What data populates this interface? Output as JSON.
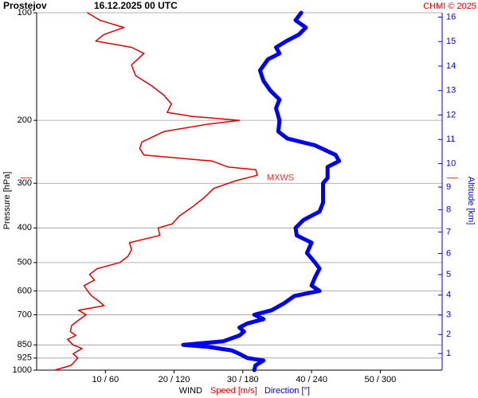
{
  "chart_data": {
    "type": "sounding",
    "title": "Prostejov",
    "subtitle": "16.12.2025 00 UTC",
    "credit": "CHMI © 2025",
    "y_label": "Pressure [hPa]",
    "y2_label": "Altitude [km]",
    "x_label": "WIND",
    "ylim": [
      100,
      1000
    ],
    "log_y": true,
    "yticks": [
      100,
      200,
      300,
      400,
      500,
      600,
      700,
      850,
      925,
      1000
    ],
    "y2ticks": [
      1,
      2,
      3,
      4,
      5,
      6,
      7,
      8,
      9,
      10,
      11,
      12,
      13,
      14,
      15,
      16
    ],
    "xlim": [
      0,
      59
    ],
    "x2lim": [
      0,
      354
    ],
    "xticks": [
      {
        "value": 10,
        "label": "10 / 60"
      },
      {
        "value": 20,
        "label": "20 / 120"
      },
      {
        "value": 30,
        "label": "30 / 180"
      },
      {
        "value": 40,
        "label": "40 / 240"
      },
      {
        "value": 50,
        "label": "50 / 300"
      }
    ],
    "grid": true,
    "annotation": {
      "label": "MXWS",
      "pressure": 290,
      "color": "#e03030"
    },
    "series": [
      {
        "name": "Speed [m/s]",
        "color": "#e00000",
        "pressure": [
          1000,
          970,
          925,
          900,
          870,
          850,
          820,
          800,
          780,
          750,
          720,
          700,
          680,
          660,
          640,
          620,
          600,
          580,
          560,
          540,
          520,
          500,
          480,
          460,
          440,
          420,
          400,
          390,
          370,
          350,
          330,
          310,
          295,
          285,
          275,
          270,
          260,
          250,
          240,
          230,
          215,
          205,
          200,
          195,
          190,
          180,
          170,
          160,
          150,
          140,
          130,
          125,
          120,
          115,
          110,
          105,
          100
        ],
        "values": [
          2.6,
          5,
          6,
          5.3,
          6.6,
          5.3,
          4.5,
          5.7,
          4.9,
          5.1,
          6.3,
          7.2,
          6.1,
          9.8,
          9,
          8,
          7.4,
          6.9,
          8.4,
          7.7,
          8.8,
          12.1,
          13.3,
          13.8,
          13.5,
          17.9,
          17.7,
          19.7,
          20.8,
          22.6,
          24.3,
          25.8,
          29,
          32.1,
          31.9,
          27.8,
          25.5,
          15.6,
          15,
          15.3,
          18.5,
          24.9,
          29.5,
          22.6,
          19,
          19.6,
          18.5,
          16.7,
          14.4,
          13.8,
          15.6,
          13.8,
          8.6,
          9.8,
          12.7,
          9.2,
          7.4
        ]
      },
      {
        "name": "Direction [°]",
        "color": "#0000ee",
        "axis": "x2",
        "pressure": [
          1000,
          970,
          940,
          925,
          900,
          880,
          860,
          850,
          830,
          800,
          780,
          760,
          740,
          720,
          700,
          680,
          650,
          620,
          600,
          580,
          550,
          520,
          500,
          470,
          440,
          420,
          400,
          380,
          360,
          340,
          320,
          300,
          290,
          270,
          260,
          250,
          235,
          225,
          215,
          200,
          185,
          175,
          165,
          155,
          145,
          135,
          130,
          125,
          120,
          115,
          110,
          105,
          100
        ],
        "values": [
          190,
          191,
          198,
          184,
          177,
          170,
          149,
          128,
          163,
          177,
          181,
          177,
          184,
          198,
          190,
          205,
          216,
          225,
          247,
          240,
          243,
          247,
          243,
          236,
          240,
          227,
          226,
          233,
          247,
          250,
          250,
          250,
          254,
          254,
          264,
          261,
          243,
          219,
          211,
          212,
          209,
          212,
          204,
          198,
          195,
          202,
          212,
          209,
          218,
          229,
          235,
          226,
          231
        ]
      }
    ]
  }
}
